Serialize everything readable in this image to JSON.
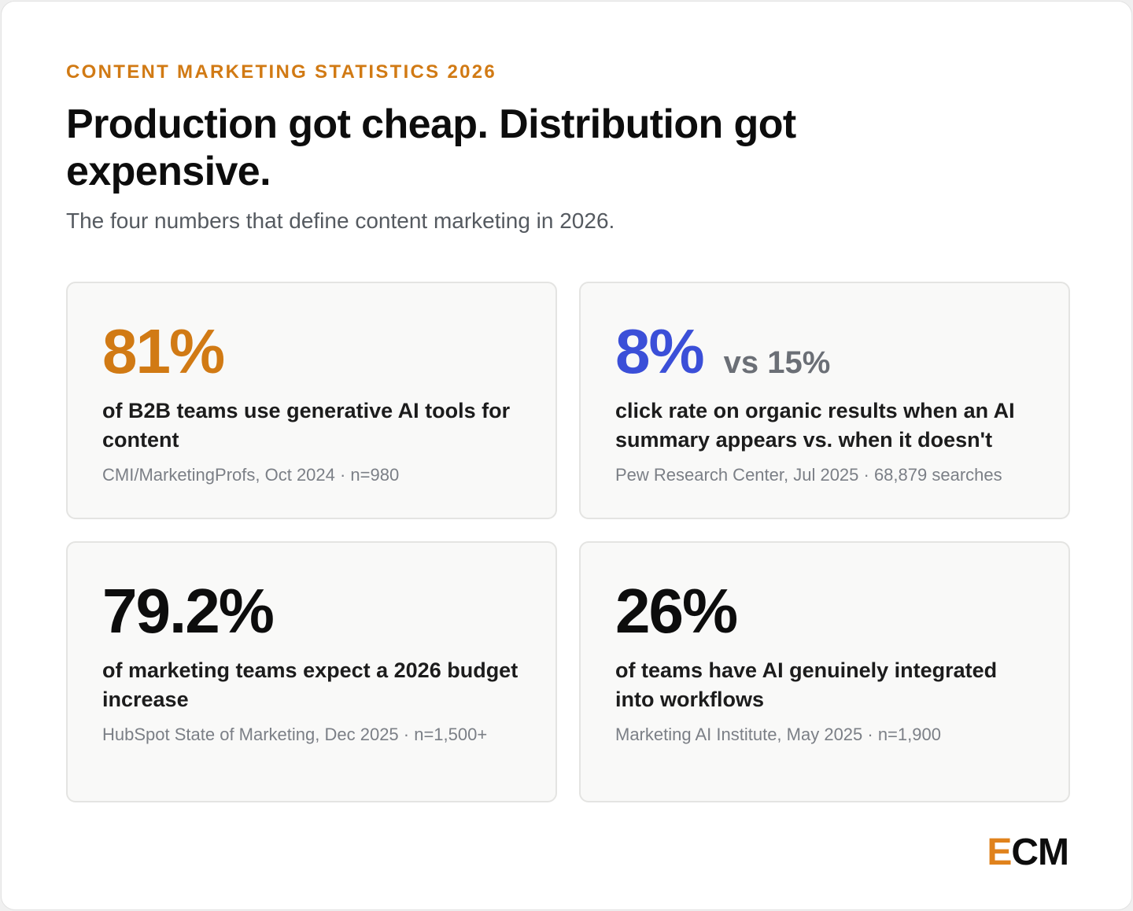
{
  "header": {
    "eyebrow": "CONTENT MARKETING STATISTICS 2026",
    "headline": "Production got cheap. Distribution got expensive.",
    "subhead": "The four numbers that define content marketing in 2026."
  },
  "stats": [
    {
      "value": "81%",
      "color": "#d17a14",
      "description": "of B2B teams use generative AI tools for content",
      "source": "CMI/MarketingProfs, Oct 2024 · n=980"
    },
    {
      "value": "8%",
      "compare": "vs 15%",
      "color": "#3b4fd8",
      "description": "click rate on organic results when an AI summary appears vs. when it doesn't",
      "source": "Pew Research Center, Jul 2025 · 68,879 searches"
    },
    {
      "value": "79.2%",
      "color": "#0d0d0d",
      "description": "of marketing teams expect a 2026 budget increase",
      "source": "HubSpot State of Marketing, Dec 2025 · n=1,500+"
    },
    {
      "value": "26%",
      "color": "#0d0d0d",
      "description": "of teams have AI genuinely integrated into workflows",
      "source": "Marketing AI Institute, May 2025 · n=1,900"
    }
  ],
  "logo": {
    "first_letter": "E",
    "rest": "CM"
  }
}
